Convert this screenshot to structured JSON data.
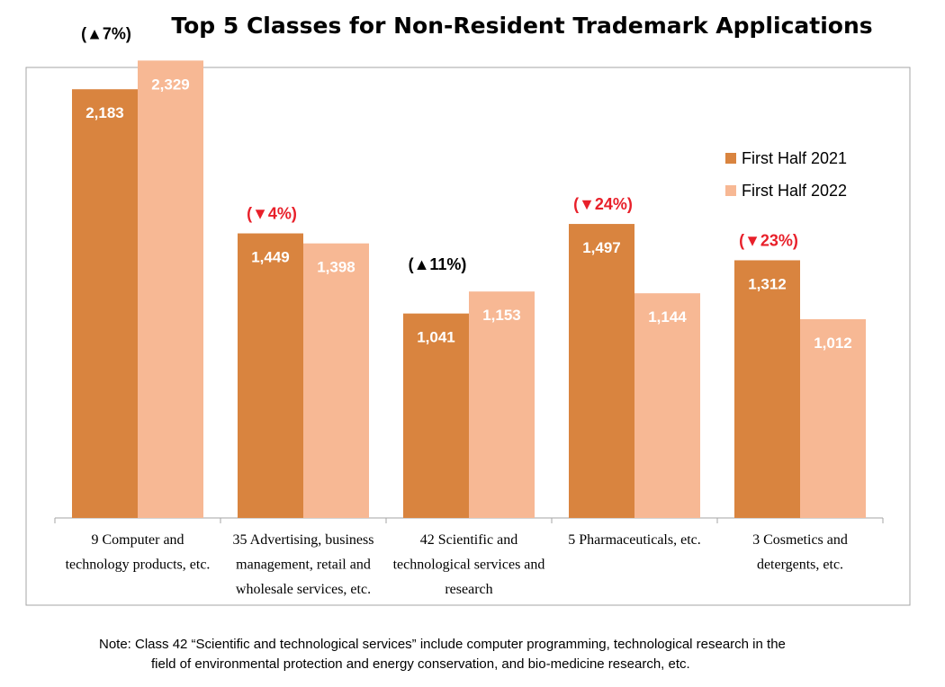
{
  "note": {
    "line1": "Note: Class 42 “Scientific and technological services” include computer programming, technological research in the",
    "line2": "field of environmental protection and energy conservation, and bio-medicine research, etc."
  },
  "chart_data": {
    "type": "bar",
    "title": "Top 5 Classes for Non-Resident Trademark Applications",
    "xlabel": "",
    "ylabel": "",
    "ylim": [
      0,
      2500
    ],
    "grid": false,
    "legend_position": "top-right",
    "categories": [
      [
        "9 Computer and",
        "technology products, etc."
      ],
      [
        "35 Advertising, business",
        "management, retail and",
        "wholesale services, etc."
      ],
      [
        "42 Scientific and",
        "technological services and",
        "research"
      ],
      [
        "5 Pharmaceuticals, etc."
      ],
      [
        "3 Cosmetics and",
        "detergents, etc."
      ]
    ],
    "series": [
      {
        "name": "First Half 2021",
        "color": "#D9843F",
        "values": [
          2183,
          1449,
          1041,
          1497,
          1312
        ],
        "labels": [
          "2,183",
          "1,449",
          "1,041",
          "1,497",
          "1,312"
        ]
      },
      {
        "name": "First Half 2022",
        "color": "#F7B894",
        "values": [
          2329,
          1398,
          1153,
          1144,
          1012
        ],
        "labels": [
          "2,329",
          "1,398",
          "1,153",
          "1,144",
          "1,012"
        ]
      }
    ],
    "changes": [
      {
        "text": "(▲7%)",
        "direction": "up",
        "color": "#000000"
      },
      {
        "text": "(▼4%)",
        "direction": "down",
        "color": "#E8202A"
      },
      {
        "text": "(▲11%)",
        "direction": "up",
        "color": "#000000"
      },
      {
        "text": "(▼24%)",
        "direction": "down",
        "color": "#E8202A"
      },
      {
        "text": "(▼23%)",
        "direction": "down",
        "color": "#E8202A"
      }
    ]
  }
}
